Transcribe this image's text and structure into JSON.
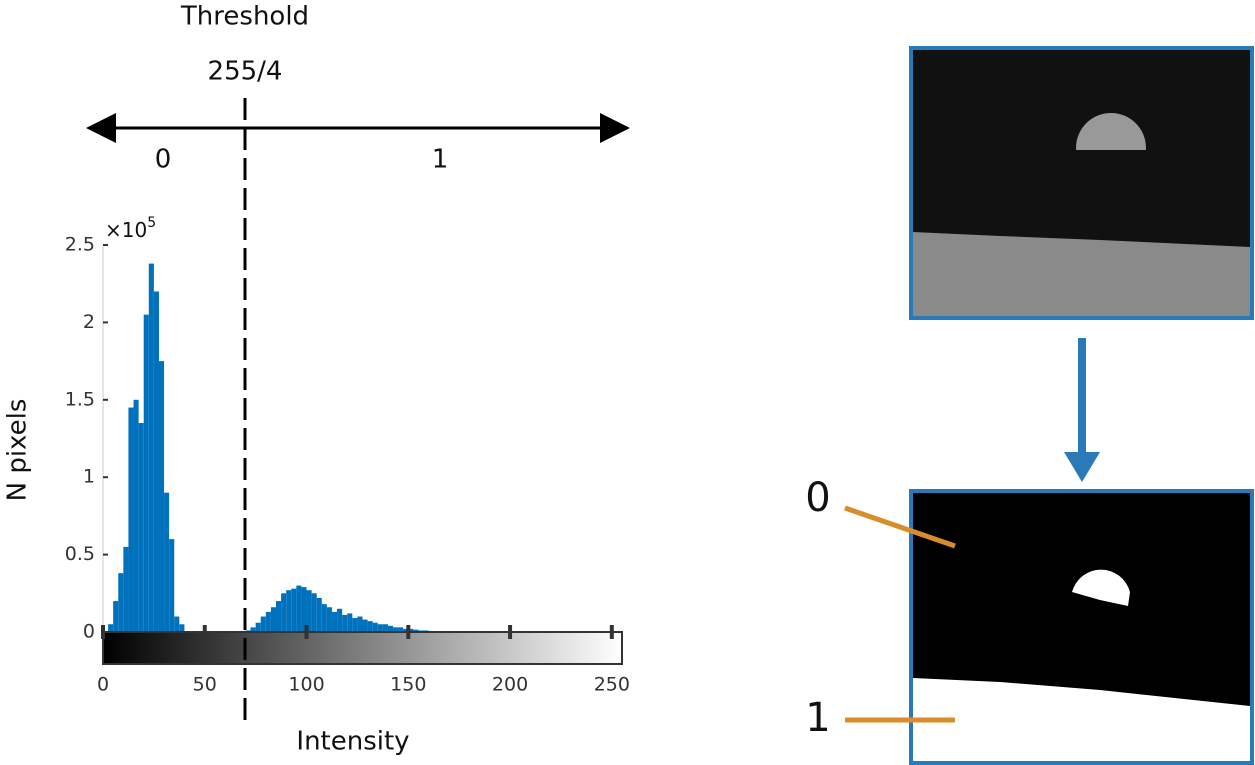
{
  "chart_data": {
    "type": "histogram",
    "threshold_title": "Threshold",
    "threshold_label": "255/4",
    "class_labels": [
      "0",
      "1"
    ],
    "xlabel": "Intensity",
    "ylabel": "N pixels",
    "y_multiplier": {
      "base": "×10",
      "exponent": "5"
    },
    "bins": [
      0,
      2.5,
      5,
      7.5,
      10,
      12.5,
      15,
      17.5,
      20,
      22.5,
      25,
      27.5,
      30,
      32.5,
      35,
      37.5,
      40,
      42.5,
      45,
      47.5,
      50,
      52.5,
      55,
      57.5,
      60,
      62.5,
      65,
      67.5,
      70,
      72.5,
      75,
      77.5,
      80,
      82.5,
      85,
      87.5,
      90,
      92.5,
      95,
      97.5,
      100,
      102.5,
      105,
      107.5,
      110,
      112.5,
      115,
      117.5,
      120,
      122.5,
      125,
      127.5,
      130,
      132.5,
      135,
      137.5,
      140,
      142.5,
      145,
      147.5,
      150,
      152.5,
      155,
      157.5,
      160,
      162.5,
      165,
      167.5,
      170,
      172.5,
      175
    ],
    "values": [
      0,
      0.05,
      0.2,
      0.38,
      0.55,
      1.45,
      1.5,
      1.35,
      2.05,
      2.38,
      2.2,
      1.75,
      0.9,
      0.6,
      0.1,
      0.05,
      0,
      0,
      0,
      0,
      0,
      0,
      0,
      0,
      0,
      0,
      0,
      0,
      0.01,
      0.03,
      0.06,
      0.1,
      0.13,
      0.16,
      0.2,
      0.25,
      0.27,
      0.28,
      0.3,
      0.29,
      0.27,
      0.25,
      0.22,
      0.18,
      0.16,
      0.13,
      0.15,
      0.11,
      0.12,
      0.09,
      0.1,
      0.08,
      0.07,
      0.06,
      0.05,
      0.05,
      0.04,
      0.03,
      0.03,
      0.02,
      0.02,
      0.015,
      0.01,
      0.01,
      0.005,
      0.005,
      0.003,
      0.003,
      0.002,
      0.001
    ],
    "color": "#0072bd",
    "xlim": [
      0,
      255
    ],
    "xticks": [
      0,
      50,
      100,
      150,
      200,
      250
    ],
    "ylim": [
      0,
      2.5
    ],
    "yticks": [
      0,
      0.5,
      1,
      1.5,
      2,
      2.5
    ],
    "output_labels": [
      "0",
      "1"
    ]
  }
}
